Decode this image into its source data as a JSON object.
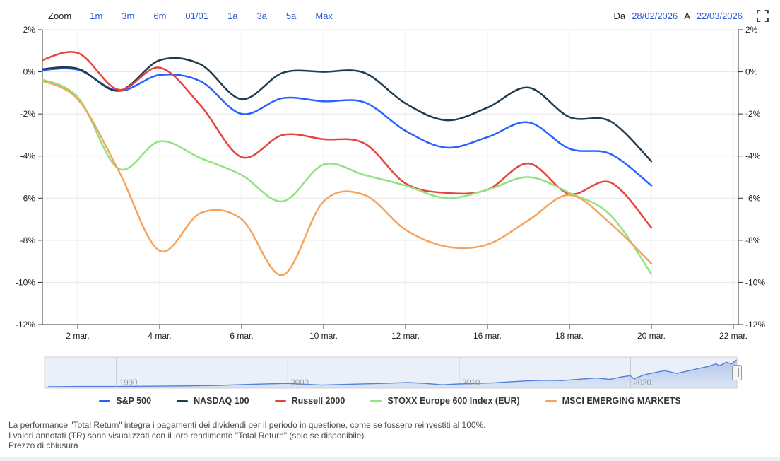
{
  "toolbar": {
    "zoom_label": "Zoom",
    "buttons": [
      "1m",
      "3m",
      "6m",
      "01/01",
      "1a",
      "3a",
      "5a",
      "Max"
    ],
    "from_label": "Da",
    "from_value": "28/02/2026",
    "to_label": "A",
    "to_value": "22/03/2026"
  },
  "chart_data": {
    "type": "line",
    "x": [
      "28 feb.",
      "2 mar.",
      "3 mar.",
      "4 mar.",
      "5 mar.",
      "6 mar.",
      "9 mar.",
      "10 mar.",
      "11 mar.",
      "12 mar.",
      "13 mar.",
      "16 mar.",
      "17 mar.",
      "18 mar.",
      "19 mar.",
      "20 mar."
    ],
    "series": [
      {
        "name": "S&P 500",
        "color": "#2962ff",
        "values": [
          0.05,
          0.1,
          -0.9,
          -0.15,
          -0.45,
          -2.0,
          -1.25,
          -1.4,
          -1.45,
          -2.8,
          -3.6,
          -3.1,
          -2.4,
          -3.65,
          -3.9,
          -5.4
        ]
      },
      {
        "name": "NASDAQ 100",
        "color": "#1f3b4d",
        "values": [
          0.1,
          0.15,
          -0.9,
          0.55,
          0.35,
          -1.3,
          -0.05,
          0.0,
          -0.05,
          -1.5,
          -2.3,
          -1.7,
          -0.75,
          -2.15,
          -2.35,
          -4.25
        ]
      },
      {
        "name": "Russell 2000",
        "color": "#e8423e",
        "values": [
          0.45,
          0.9,
          -0.85,
          0.2,
          -1.6,
          -4.05,
          -3.0,
          -3.2,
          -3.4,
          -5.3,
          -5.75,
          -5.6,
          -4.35,
          -5.8,
          -5.25,
          -7.4
        ]
      },
      {
        "name": "STOXX Europe 600 Index (EUR)",
        "color": "#90e47f",
        "values": [
          -0.3,
          -1.2,
          -4.6,
          -3.3,
          -4.1,
          -4.9,
          -6.15,
          -4.4,
          -4.9,
          -5.4,
          -6.0,
          -5.6,
          -5.0,
          -5.75,
          -6.8,
          -9.6
        ]
      },
      {
        "name": "MSCI EMERGING MARKETS",
        "color": "#f7a35c",
        "values": [
          -0.35,
          -1.3,
          -4.7,
          -8.5,
          -6.7,
          -7.0,
          -9.65,
          -6.15,
          -5.85,
          -7.5,
          -8.3,
          -8.2,
          -7.05,
          -5.85,
          -7.2,
          -9.1
        ]
      }
    ],
    "ylim": [
      -12,
      2
    ],
    "y_tick_values": [
      2,
      0,
      -2,
      -4,
      -6,
      -8,
      -10,
      -12
    ],
    "y_tick_labels": [
      "2%",
      "0%",
      "-2%",
      "-4%",
      "-6%",
      "-8%",
      "-10%",
      "-12%"
    ],
    "x_tick_labels": [
      "2 mar.",
      "4 mar.",
      "6 mar.",
      "10 mar.",
      "12 mar.",
      "16 mar.",
      "18 mar.",
      "20 mar.",
      "22 mar."
    ],
    "x_tick_indices": [
      1,
      3,
      5,
      7,
      9,
      11,
      13,
      15,
      17
    ],
    "grid": true,
    "legend_position": "bottom"
  },
  "navigator": {
    "year_labels": [
      "1990",
      "2000",
      "2010",
      "2020"
    ],
    "year_values": [
      1990,
      2000,
      2010,
      2020
    ],
    "series": {
      "x": [
        1986,
        1988,
        1990,
        1992,
        1994,
        1996,
        1998,
        2000,
        2001,
        2002,
        2003,
        2005,
        2007,
        2008,
        2009,
        2010,
        2012,
        2014,
        2015,
        2016,
        2018,
        2018.8,
        2019.5,
        2020,
        2020.2,
        2020.8,
        2021.5,
        2022,
        2022.7,
        2023.5,
        2024,
        2024.5,
        2025,
        2025.2,
        2025.6,
        2025.9,
        2026.2
      ],
      "v": [
        0.05,
        0.06,
        0.06,
        0.07,
        0.08,
        0.1,
        0.14,
        0.17,
        0.14,
        0.11,
        0.13,
        0.16,
        0.2,
        0.17,
        0.12,
        0.15,
        0.19,
        0.26,
        0.28,
        0.27,
        0.36,
        0.31,
        0.4,
        0.44,
        0.33,
        0.47,
        0.56,
        0.62,
        0.52,
        0.63,
        0.7,
        0.76,
        0.86,
        0.79,
        0.92,
        0.86,
        1.0
      ]
    },
    "line_color": "#4f7fe0",
    "fill_color": "#bccff0",
    "mask_color": "rgba(96,131,200,0.13)"
  },
  "footer": {
    "lines": [
      "La performance \"Total Return\" integra i pagamenti dei dividendi per il periodo in questione, come se fossero reinvestiti al 100%.",
      "I valori annotati (TR) sono visualizzati con il loro rendimento \"Total Return\" (solo se disponibile).",
      "Prezzo di chiusura"
    ]
  }
}
